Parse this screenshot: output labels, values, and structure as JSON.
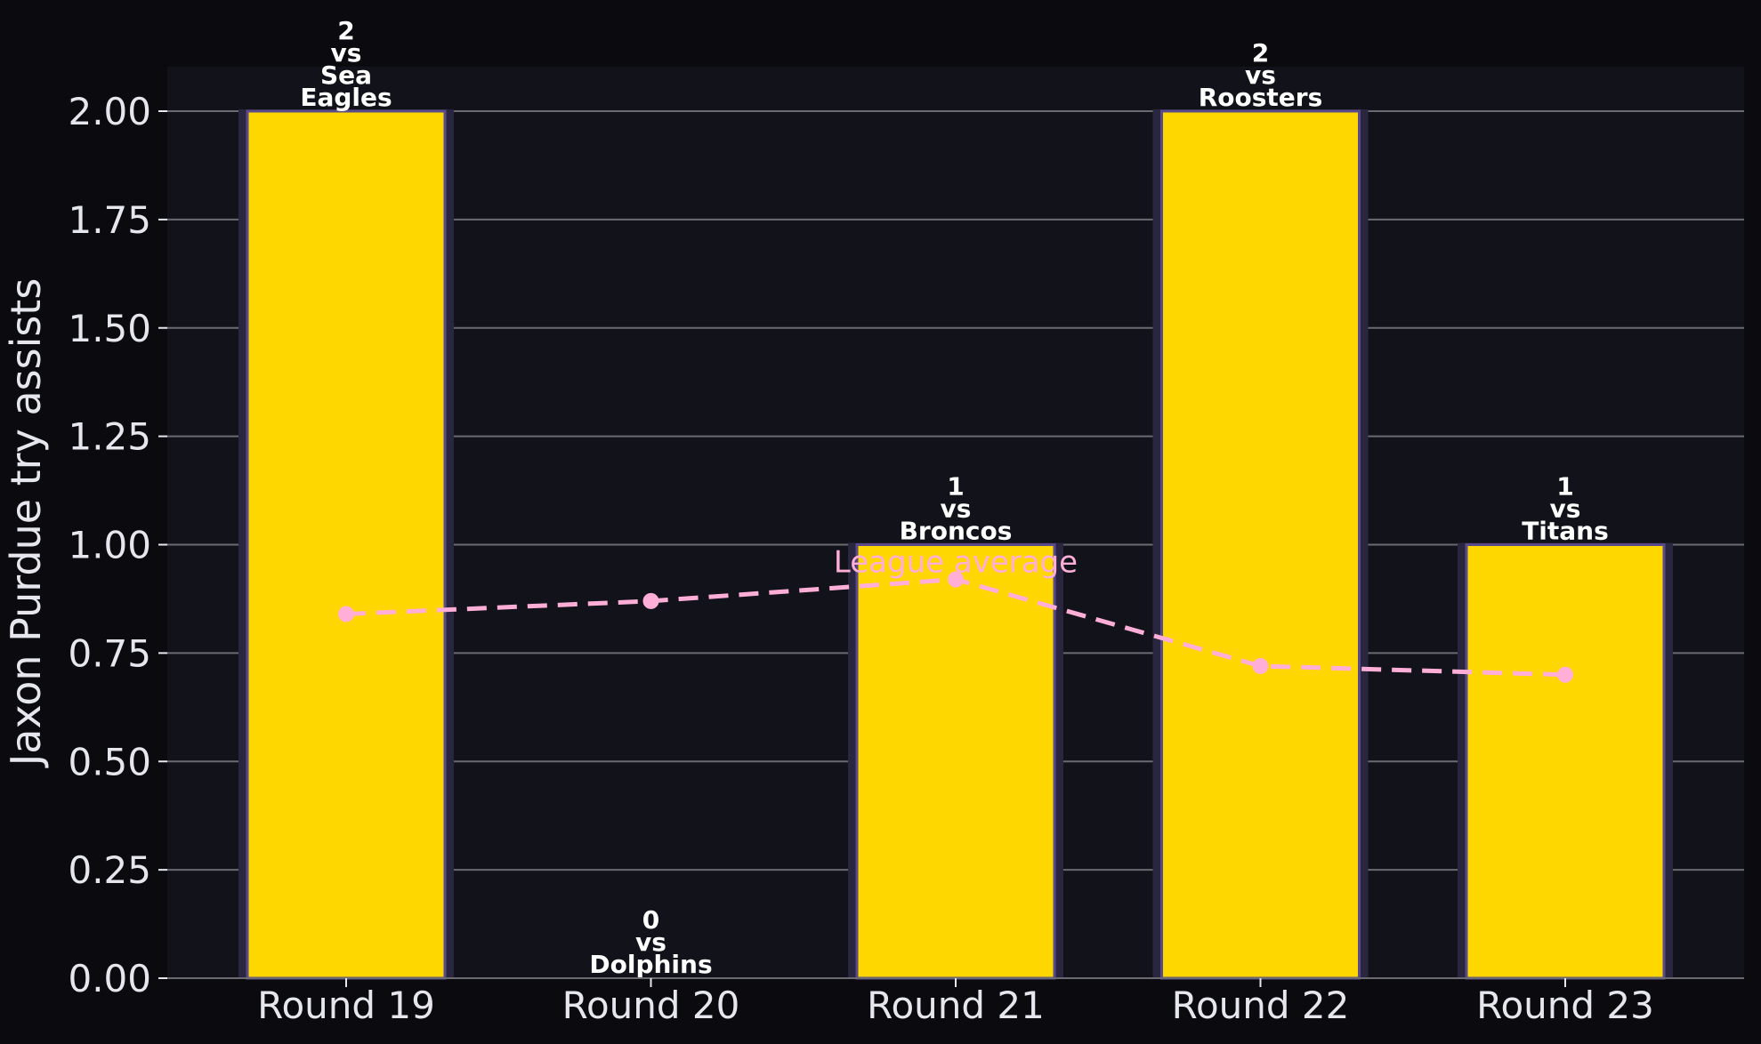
{
  "chart_data": {
    "type": "bar",
    "categories": [
      "Round 19",
      "Round 20",
      "Round 21",
      "Round 22",
      "Round 23"
    ],
    "series": [
      {
        "values": [
          2,
          0,
          1,
          2,
          1
        ],
        "color": "#ffd700"
      },
      {
        "name": "League average",
        "type": "line",
        "values": [
          0.84,
          0.87,
          0.92,
          0.72,
          0.7
        ],
        "color": "#ffaed8",
        "style": "dashed"
      }
    ],
    "bar_labels": [
      [
        "2",
        "vs",
        "Sea",
        "Eagles"
      ],
      [
        "0",
        "vs",
        "Dolphins"
      ],
      [
        "1",
        "vs",
        "Broncos"
      ],
      [
        "2",
        "vs",
        "Roosters"
      ],
      [
        "1",
        "vs",
        "Titans"
      ]
    ],
    "ylabel": "Jaxon Purdue try assists",
    "xlabel": "",
    "ylim": [
      0,
      2.1
    ],
    "yticks": [
      "0.00",
      "0.25",
      "0.50",
      "0.75",
      "1.00",
      "1.25",
      "1.50",
      "1.75",
      "2.00"
    ],
    "ytick_values": [
      0,
      0.25,
      0.5,
      0.75,
      1.0,
      1.25,
      1.5,
      1.75,
      2.0
    ],
    "grid": "horizontal",
    "colors": {
      "background": "#0b0b0f",
      "plot_background": "#12131a",
      "grid": "#6a6a70",
      "bar": "#ffd700",
      "bar_edge": "#5a4a8a",
      "bar_glow": "#2a2640",
      "average_line": "#ffaed8",
      "text": "#e6e6ee",
      "label_text": "#ffffff"
    }
  }
}
